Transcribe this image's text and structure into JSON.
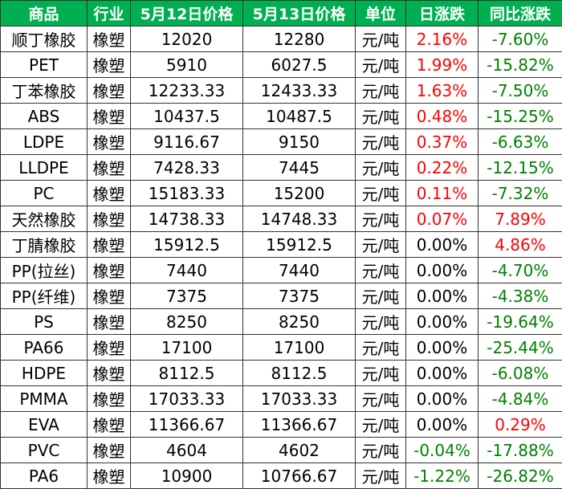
{
  "colors": {
    "header_bg": "#00b050",
    "header_text": "#ffffff",
    "positive": "#ff0000",
    "negative": "#008000",
    "neutral": "#000000"
  },
  "headers": [
    "商品",
    "行业",
    "5月12日价格",
    "5月13日价格",
    "单位",
    "日涨跌",
    "同比涨跌"
  ],
  "rows": [
    {
      "product": "顺丁橡胶",
      "industry": "橡塑",
      "price_may12": "12020",
      "price_may13": "12280",
      "unit": "元/吨",
      "daily_change": "2.16%",
      "yoy_change": "-7.60%"
    },
    {
      "product": "PET",
      "industry": "橡塑",
      "price_may12": "5910",
      "price_may13": "6027.5",
      "unit": "元/吨",
      "daily_change": "1.99%",
      "yoy_change": "-15.82%"
    },
    {
      "product": "丁苯橡胶",
      "industry": "橡塑",
      "price_may12": "12233.33",
      "price_may13": "12433.33",
      "unit": "元/吨",
      "daily_change": "1.63%",
      "yoy_change": "-7.50%"
    },
    {
      "product": "ABS",
      "industry": "橡塑",
      "price_may12": "10437.5",
      "price_may13": "10487.5",
      "unit": "元/吨",
      "daily_change": "0.48%",
      "yoy_change": "-15.25%"
    },
    {
      "product": "LDPE",
      "industry": "橡塑",
      "price_may12": "9116.67",
      "price_may13": "9150",
      "unit": "元/吨",
      "daily_change": "0.37%",
      "yoy_change": "-6.63%"
    },
    {
      "product": "LLDPE",
      "industry": "橡塑",
      "price_may12": "7428.33",
      "price_may13": "7445",
      "unit": "元/吨",
      "daily_change": "0.22%",
      "yoy_change": "-12.15%"
    },
    {
      "product": "PC",
      "industry": "橡塑",
      "price_may12": "15183.33",
      "price_may13": "15200",
      "unit": "元/吨",
      "daily_change": "0.11%",
      "yoy_change": "-7.32%"
    },
    {
      "product": "天然橡胶",
      "industry": "橡塑",
      "price_may12": "14738.33",
      "price_may13": "14748.33",
      "unit": "元/吨",
      "daily_change": "0.07%",
      "yoy_change": "7.89%"
    },
    {
      "product": "丁腈橡胶",
      "industry": "橡塑",
      "price_may12": "15912.5",
      "price_may13": "15912.5",
      "unit": "元/吨",
      "daily_change": "0.00%",
      "yoy_change": "4.86%"
    },
    {
      "product": "PP(拉丝)",
      "industry": "橡塑",
      "price_may12": "7440",
      "price_may13": "7440",
      "unit": "元/吨",
      "daily_change": "0.00%",
      "yoy_change": "-4.70%"
    },
    {
      "product": "PP(纤维)",
      "industry": "橡塑",
      "price_may12": "7375",
      "price_may13": "7375",
      "unit": "元/吨",
      "daily_change": "0.00%",
      "yoy_change": "-4.38%"
    },
    {
      "product": "PS",
      "industry": "橡塑",
      "price_may12": "8250",
      "price_may13": "8250",
      "unit": "元/吨",
      "daily_change": "0.00%",
      "yoy_change": "-19.64%"
    },
    {
      "product": "PA66",
      "industry": "橡塑",
      "price_may12": "17100",
      "price_may13": "17100",
      "unit": "元/吨",
      "daily_change": "0.00%",
      "yoy_change": "-25.44%"
    },
    {
      "product": "HDPE",
      "industry": "橡塑",
      "price_may12": "8112.5",
      "price_may13": "8112.5",
      "unit": "元/吨",
      "daily_change": "0.00%",
      "yoy_change": "-6.08%"
    },
    {
      "product": "PMMA",
      "industry": "橡塑",
      "price_may12": "17033.33",
      "price_may13": "17033.33",
      "unit": "元/吨",
      "daily_change": "0.00%",
      "yoy_change": "-4.84%"
    },
    {
      "product": "EVA",
      "industry": "橡塑",
      "price_may12": "11366.67",
      "price_may13": "11366.67",
      "unit": "元/吨",
      "daily_change": "0.00%",
      "yoy_change": "0.29%"
    },
    {
      "product": "PVC",
      "industry": "橡塑",
      "price_may12": "4604",
      "price_may13": "4602",
      "unit": "元/吨",
      "daily_change": "-0.04%",
      "yoy_change": "-17.88%"
    },
    {
      "product": "PA6",
      "industry": "橡塑",
      "price_may12": "10900",
      "price_may13": "10766.67",
      "unit": "元/吨",
      "daily_change": "-1.22%",
      "yoy_change": "-26.82%"
    }
  ]
}
